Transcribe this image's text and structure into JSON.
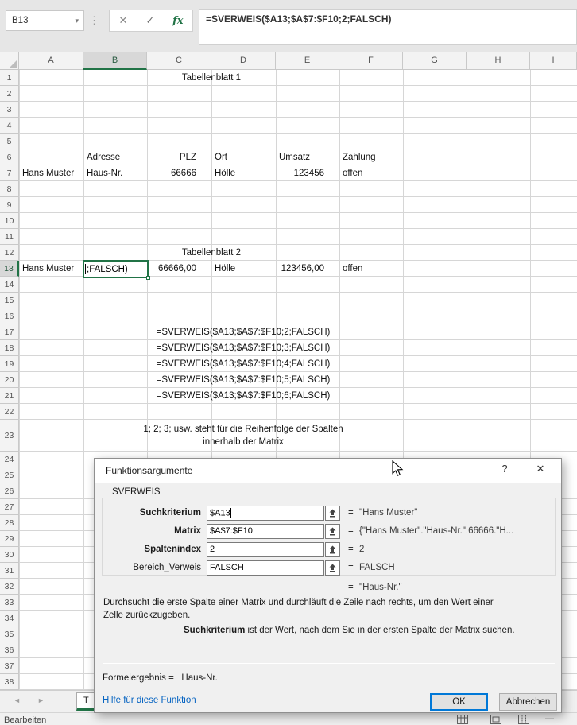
{
  "formula_bar": {
    "cell_reference": "B13",
    "formula": "=SVERWEIS($A13;$A$7:$F10;2;FALSCH)",
    "icons": {
      "dropdown": "▾",
      "splitter": "⋮",
      "cancel": "✕",
      "confirm": "✓",
      "insert_function": "fx"
    }
  },
  "grid": {
    "column_headers": [
      "A",
      "B",
      "C",
      "D",
      "E",
      "F",
      "G",
      "H",
      "I"
    ],
    "selected_column": "B",
    "row_count": 38,
    "selected_row": 13,
    "editing_cell": {
      "reference": "B13",
      "visible_text": ";FALSCH)"
    },
    "cells": [
      {
        "row": 1,
        "col": "C",
        "colspan": 2,
        "align": "center",
        "text": "Tabellenblatt 1"
      },
      {
        "row": 6,
        "col": "B",
        "align": "left",
        "text": "Adresse"
      },
      {
        "row": 6,
        "col": "C",
        "align": "right",
        "text": "PLZ"
      },
      {
        "row": 6,
        "col": "D",
        "align": "left",
        "text": "Ort"
      },
      {
        "row": 6,
        "col": "E",
        "align": "left",
        "text": "Umsatz"
      },
      {
        "row": 6,
        "col": "F",
        "align": "left",
        "text": "Zahlung"
      },
      {
        "row": 7,
        "col": "A",
        "align": "left",
        "text": "Hans Muster"
      },
      {
        "row": 7,
        "col": "B",
        "align": "left",
        "text": "Haus-Nr."
      },
      {
        "row": 7,
        "col": "C",
        "align": "right",
        "text": "66666"
      },
      {
        "row": 7,
        "col": "D",
        "align": "left",
        "text": "Hölle"
      },
      {
        "row": 7,
        "col": "E",
        "align": "right",
        "text": "123456"
      },
      {
        "row": 7,
        "col": "F",
        "align": "left",
        "text": "offen"
      },
      {
        "row": 12,
        "col": "C",
        "colspan": 2,
        "align": "center",
        "text": "Tabellenblatt 2"
      },
      {
        "row": 13,
        "col": "A",
        "align": "left",
        "text": "Hans Muster"
      },
      {
        "row": 13,
        "col": "C",
        "align": "right",
        "text": "66666,00"
      },
      {
        "row": 13,
        "col": "D",
        "align": "left",
        "text": "Hölle"
      },
      {
        "row": 13,
        "col": "E",
        "align": "right",
        "text": "123456,00"
      },
      {
        "row": 13,
        "col": "F",
        "align": "left",
        "text": "offen"
      },
      {
        "row": 17,
        "col": "B",
        "colspan": 5,
        "align": "center",
        "text": "=SVERWEIS($A13;$A$7:$F10;2;FALSCH)"
      },
      {
        "row": 18,
        "col": "B",
        "colspan": 5,
        "align": "center",
        "text": "=SVERWEIS($A13;$A$7:$F10;3;FALSCH)"
      },
      {
        "row": 19,
        "col": "B",
        "colspan": 5,
        "align": "center",
        "text": "=SVERWEIS($A13;$A$7:$F10;4;FALSCH)"
      },
      {
        "row": 20,
        "col": "B",
        "colspan": 5,
        "align": "center",
        "text": "=SVERWEIS($A13;$A$7:$F10;5;FALSCH)"
      },
      {
        "row": 21,
        "col": "B",
        "colspan": 5,
        "align": "center",
        "text": "=SVERWEIS($A13;$A$7:$F10;6;FALSCH)"
      },
      {
        "row": 23,
        "col": "B",
        "colspan": 5,
        "align": "center",
        "lines": [
          "1; 2; 3;  usw. steht für die Reihenfolge der Spalten",
          "innerhalb der Matrix"
        ]
      }
    ]
  },
  "dialog": {
    "title": "Funktionsargumente",
    "help_button": "?",
    "close_button": "✕",
    "function_name": "SVERWEIS",
    "focused_argument": "Suchkriterium",
    "arguments": [
      {
        "label": "Suchkriterium",
        "value": "$A13",
        "equals": "=",
        "result": "\"Hans Muster\"",
        "required": true
      },
      {
        "label": "Matrix",
        "value": "$A$7:$F10",
        "equals": "=",
        "result": "{\"Hans Muster\".\"Haus-Nr.\".66666.\"H...",
        "required": true
      },
      {
        "label": "Spaltenindex",
        "value": "2",
        "equals": "=",
        "result": "2",
        "required": true
      },
      {
        "label": "Bereich_Verweis",
        "value": "FALSCH",
        "equals": "=",
        "result": "FALSCH",
        "required": false
      }
    ],
    "overall_equals": "=",
    "overall_result": "\"Haus-Nr.\"",
    "description": "Durchsucht die erste Spalte einer Matrix und durchläuft die Zeile nach rechts, um den Wert einer Zelle zurückzugeben.",
    "argument_help": {
      "term": "Suchkriterium",
      "text": "ist der Wert, nach dem Sie in der ersten Spalte der Matrix suchen."
    },
    "formula_result": {
      "label": "Formelergebnis =",
      "value": "Haus-Nr."
    },
    "help_link": "Hilfe für diese Funktion",
    "ok_button": "OK",
    "cancel_button": "Abbrechen"
  },
  "sheet_tabs": {
    "nav_prev": "◄",
    "nav_next": "►",
    "visible_tab_label": "T"
  },
  "status_bar": {
    "mode": "Bearbeiten",
    "zoom_minus": "—"
  },
  "colors": {
    "accent_green": "#217346",
    "link_blue": "#0563C1",
    "focus_blue": "#0078d7"
  }
}
